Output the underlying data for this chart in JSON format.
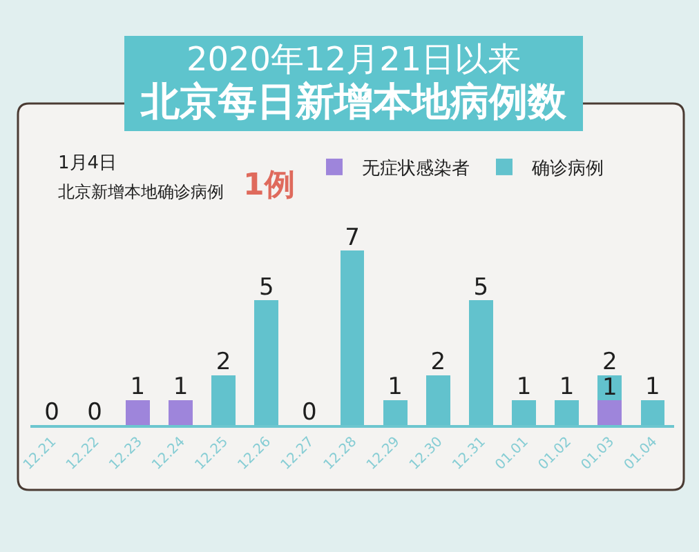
{
  "chart_data": {
    "type": "bar",
    "title": "2020年12月21日以来",
    "subtitle": "北京每日新增本地病例数",
    "categories": [
      "12.21",
      "12.22",
      "12.23",
      "12.24",
      "12.25",
      "12.26",
      "12.27",
      "12.28",
      "12.29",
      "12.30",
      "12.31",
      "01.01",
      "01.02",
      "01.03",
      "01.04"
    ],
    "stacked": true,
    "series": [
      {
        "name": "无症状感染者",
        "color": "#9e85db",
        "values": [
          0,
          0,
          1,
          1,
          0,
          0,
          0,
          0,
          0,
          0,
          0,
          0,
          0,
          1,
          0
        ]
      },
      {
        "name": "确诊病例",
        "color": "#62c2cd",
        "values": [
          0,
          0,
          0,
          0,
          2,
          5,
          0,
          7,
          1,
          2,
          5,
          1,
          1,
          1,
          1
        ],
        "value_labels": [
          null,
          null,
          null,
          null,
          null,
          null,
          null,
          null,
          null,
          null,
          null,
          null,
          null,
          "1",
          null
        ]
      }
    ],
    "totals": [
      "0",
      "0",
      "1",
      "1",
      "2",
      "5",
      "0",
      "7",
      "1",
      "2",
      "5",
      "1",
      "1",
      "2",
      "1"
    ],
    "annotations": [
      "1月4日",
      "北京新增本地确诊病例",
      "1例"
    ],
    "legend": "top right",
    "tick_labels": "x"
  }
}
